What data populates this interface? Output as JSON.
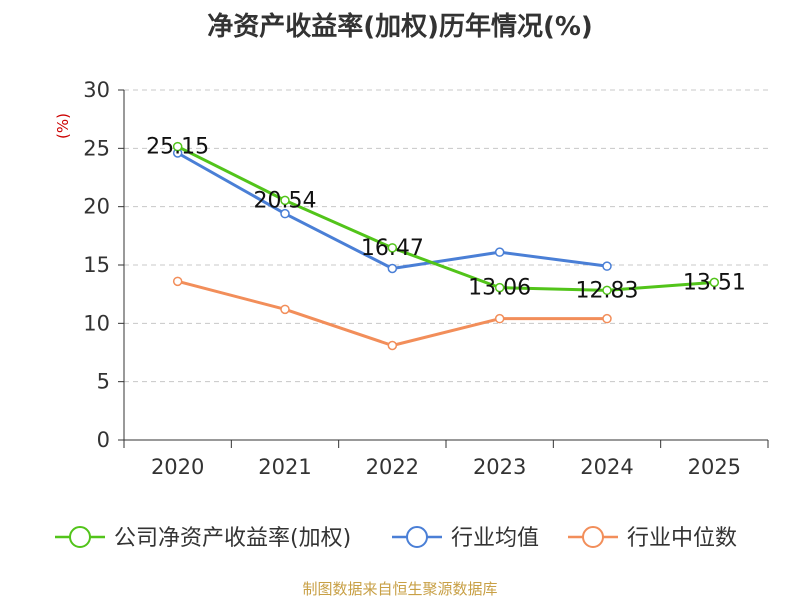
{
  "chart_data": {
    "type": "line",
    "title": "净资产收益率(加权)历年情况(%)",
    "ylabel": "(%)",
    "xlabel": "",
    "categories": [
      "2020",
      "2021",
      "2022",
      "2023",
      "2024",
      "2025"
    ],
    "ylim": [
      0,
      30
    ],
    "yticks": [
      0,
      5,
      10,
      15,
      20,
      25,
      30
    ],
    "grid": true,
    "legend": "bottom",
    "series": [
      {
        "name": "公司净资产收益率(加权)",
        "color": "#52c41a",
        "values": [
          25.15,
          20.54,
          16.47,
          13.06,
          12.83,
          13.51
        ],
        "labels": [
          "25.15",
          "20.54",
          "16.47",
          "13.06",
          "12.83",
          "13.51"
        ]
      },
      {
        "name": "行业均值",
        "color": "#4a7fd6",
        "values": [
          24.6,
          19.4,
          14.7,
          16.1,
          14.9,
          null
        ]
      },
      {
        "name": "行业中位数",
        "color": "#f28e5a",
        "values": [
          13.6,
          11.2,
          8.1,
          10.4,
          10.4,
          null
        ]
      }
    ]
  },
  "footer": {
    "source": "制图数据来自恒生聚源数据库"
  }
}
